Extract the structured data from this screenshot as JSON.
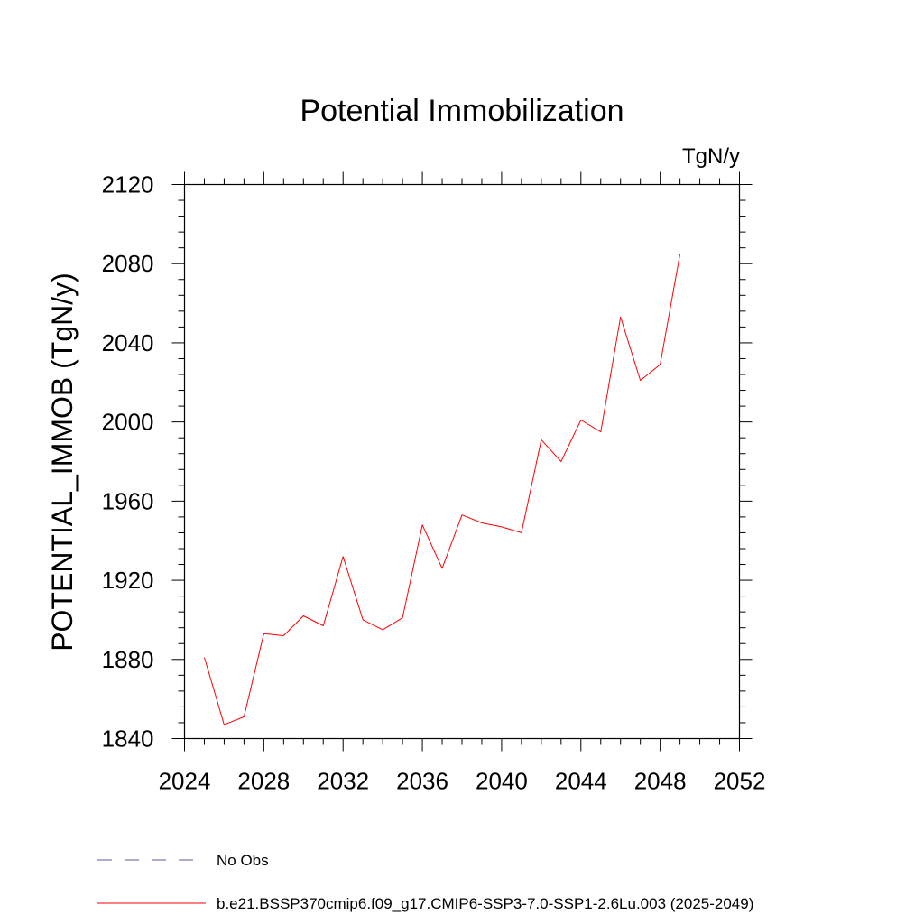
{
  "chart_data": {
    "type": "line",
    "title": "Potential Immobilization",
    "units": "TgN/y",
    "xlabel": "",
    "ylabel": "POTENTIAL_IMMOB  (TgN/y)",
    "xlim": [
      2024,
      2052
    ],
    "ylim": [
      1840,
      2120
    ],
    "xticks": [
      2024,
      2028,
      2032,
      2036,
      2040,
      2044,
      2048,
      2052
    ],
    "yticks": [
      1840,
      1880,
      1920,
      1960,
      2000,
      2040,
      2080,
      2120
    ],
    "grid": false,
    "legend_position": "bottom",
    "series": [
      {
        "name": "b.e21.BSSP370cmip6.f09_g17.CMIP6-SSP3-7.0-SSP1-2.6Lu.003 (2025-2049)",
        "color": "#ff0000",
        "dash": "solid",
        "x": [
          2025,
          2026,
          2027,
          2028,
          2029,
          2030,
          2031,
          2032,
          2033,
          2034,
          2035,
          2036,
          2037,
          2038,
          2039,
          2040,
          2041,
          2042,
          2043,
          2044,
          2045,
          2046,
          2047,
          2048,
          2049
        ],
        "values": [
          1881,
          1847,
          1851,
          1893,
          1892,
          1902,
          1897,
          1932,
          1900,
          1895,
          1901,
          1948,
          1926,
          1953,
          1949,
          1947,
          1944,
          1991,
          1980,
          2001,
          1995,
          2053,
          2021,
          2029,
          2085
        ]
      }
    ],
    "legend": [
      {
        "label": "No Obs",
        "color": "#5a5aa0",
        "dash": "dashed"
      },
      {
        "label": "b.e21.BSSP370cmip6.f09_g17.CMIP6-SSP3-7.0-SSP1-2.6Lu.003 (2025-2049)",
        "color": "#ff0000",
        "dash": "solid"
      }
    ]
  }
}
